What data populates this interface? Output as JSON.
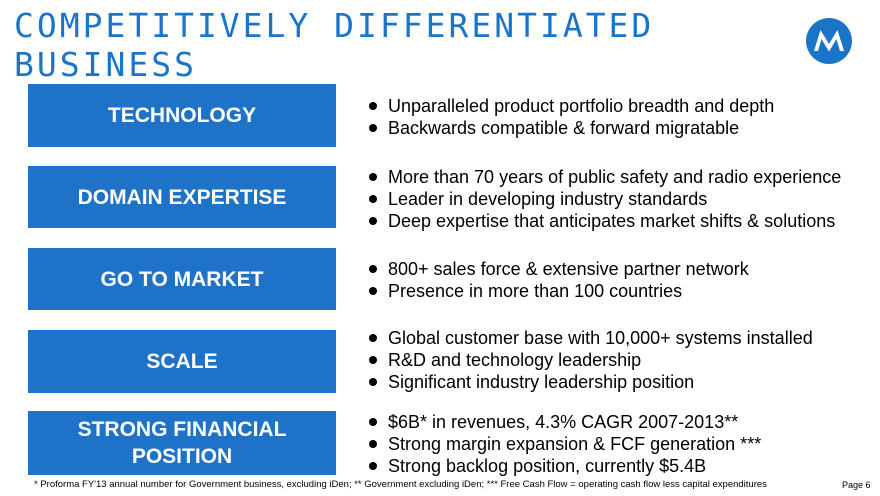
{
  "slide": {
    "title": "COMPETITIVELY DIFFERENTIATED BUSINESS",
    "logo_icon": "motorola-logo-icon",
    "colors": {
      "accent": "#1a75c9",
      "box": "#1e72c8"
    }
  },
  "sections": [
    {
      "label": "TECHNOLOGY",
      "bullets": [
        "Unparalleled product portfolio breadth and depth",
        "Backwards compatible & forward migratable"
      ]
    },
    {
      "label": "DOMAIN EXPERTISE",
      "bullets": [
        "More than 70 years of public safety and radio experience",
        "Leader in developing industry standards",
        "Deep expertise that anticipates market shifts & solutions"
      ]
    },
    {
      "label": "GO TO MARKET",
      "bullets": [
        "800+ sales force & extensive partner network",
        "Presence in more than 100 countries"
      ]
    },
    {
      "label": "SCALE",
      "bullets": [
        "Global customer base with 10,000+ systems installed",
        "R&D and technology leadership",
        "Significant industry leadership position"
      ]
    },
    {
      "label": "STRONG FINANCIAL POSITION",
      "bullets": [
        "$6B* in revenues, 4.3% CAGR 2007-2013**",
        "Strong margin expansion & FCF generation ***",
        "Strong backlog position, currently $5.4B"
      ]
    }
  ],
  "footer": {
    "footnote": "* Proforma FY'13 annual number for Government business, excluding iDen;   ** Government excluding iDen;   *** Free Cash Flow = operating cash flow less capital expenditures",
    "page": "Page 6"
  }
}
